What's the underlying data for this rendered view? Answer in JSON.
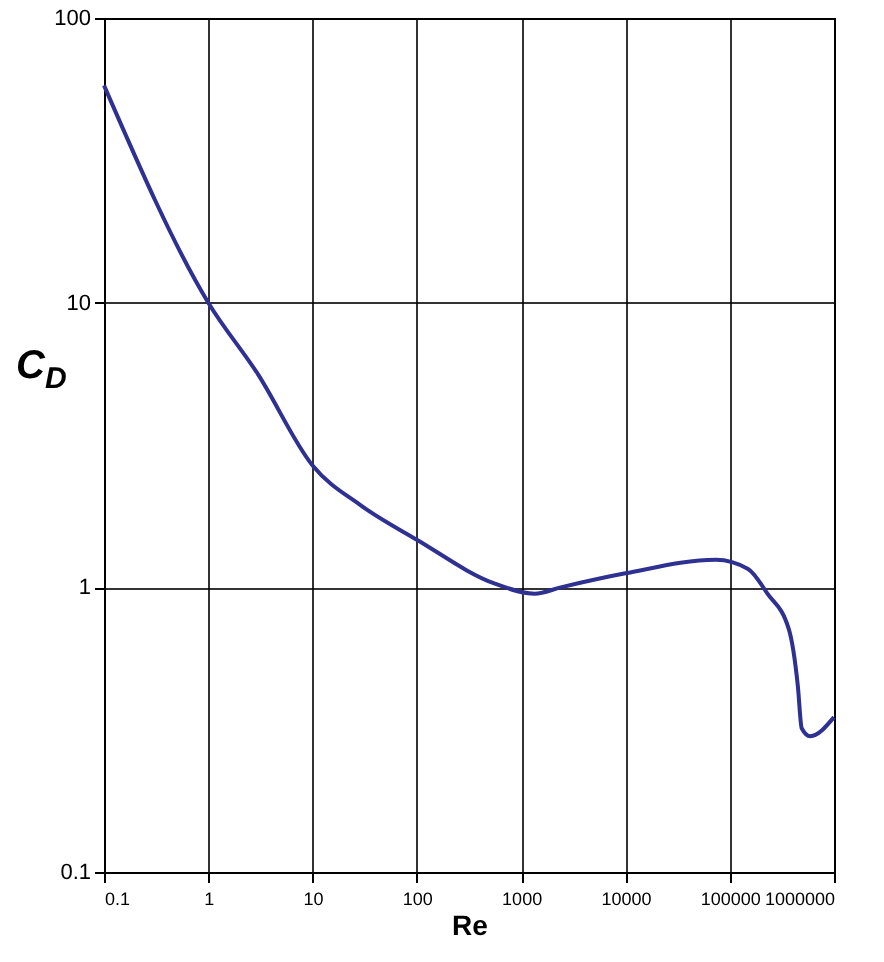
{
  "chart_data": {
    "type": "line",
    "xlabel": "Re",
    "ylabel": "C$_{D}$",
    "x": [
      0.1,
      1,
      3,
      10,
      29,
      100,
      560,
      1350,
      2400,
      10000,
      74000,
      150000,
      230000,
      370000,
      450000,
      490000,
      590000,
      1000000
    ],
    "series": [
      {
        "color": "#2e3192",
        "values": [
          58,
          10,
          5.6,
          2.68,
          1.94,
          1.47,
          1.03,
          0.95,
          1.0,
          1.12,
          1.25,
          1.16,
          0.95,
          0.71,
          0.45,
          0.32,
          0.3,
          0.35
        ]
      }
    ],
    "log": "xy",
    "xlim": [
      0.1,
      1000000
    ],
    "ylim": [
      0.1,
      100
    ],
    "xticks": [
      0.1,
      1,
      10,
      100,
      1000,
      10000,
      100000,
      1000000
    ],
    "yticks": [
      0.1,
      1,
      10,
      100
    ],
    "grid": true,
    "marker": "none",
    "line_style": "solid"
  }
}
